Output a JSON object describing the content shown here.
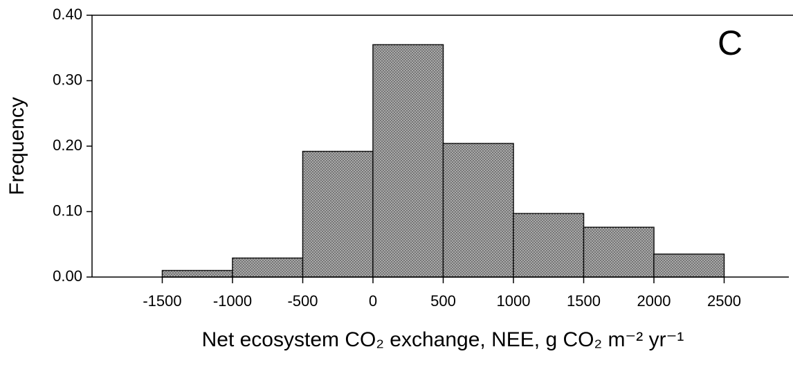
{
  "chart_data": {
    "type": "histogram",
    "annotation": "C",
    "xlabel": "Net ecosystem CO₂ exchange, NEE, g CO₂ m⁻² yr⁻¹",
    "ylabel": "Frequency",
    "bins": [
      -1500,
      -1000,
      -500,
      0,
      500,
      1000,
      1500,
      2000,
      2500
    ],
    "values": [
      0.01,
      0.029,
      0.192,
      0.355,
      0.204,
      0.097,
      0.076,
      0.035
    ],
    "color": "#b0b0b0",
    "xlim": [
      -2000,
      3000
    ],
    "xticks": [
      -1500,
      -1000,
      -500,
      0,
      500,
      1000,
      1500,
      2000,
      2500
    ],
    "ylim": [
      0,
      0.4
    ],
    "yticks": [
      {
        "value": 0,
        "label": "0.00"
      },
      {
        "value": 0.1,
        "label": "0.10"
      },
      {
        "value": 0.2,
        "label": "0.20"
      },
      {
        "value": 0.3,
        "label": "0.30"
      },
      {
        "value": 0.4,
        "label": "0.40"
      }
    ]
  }
}
